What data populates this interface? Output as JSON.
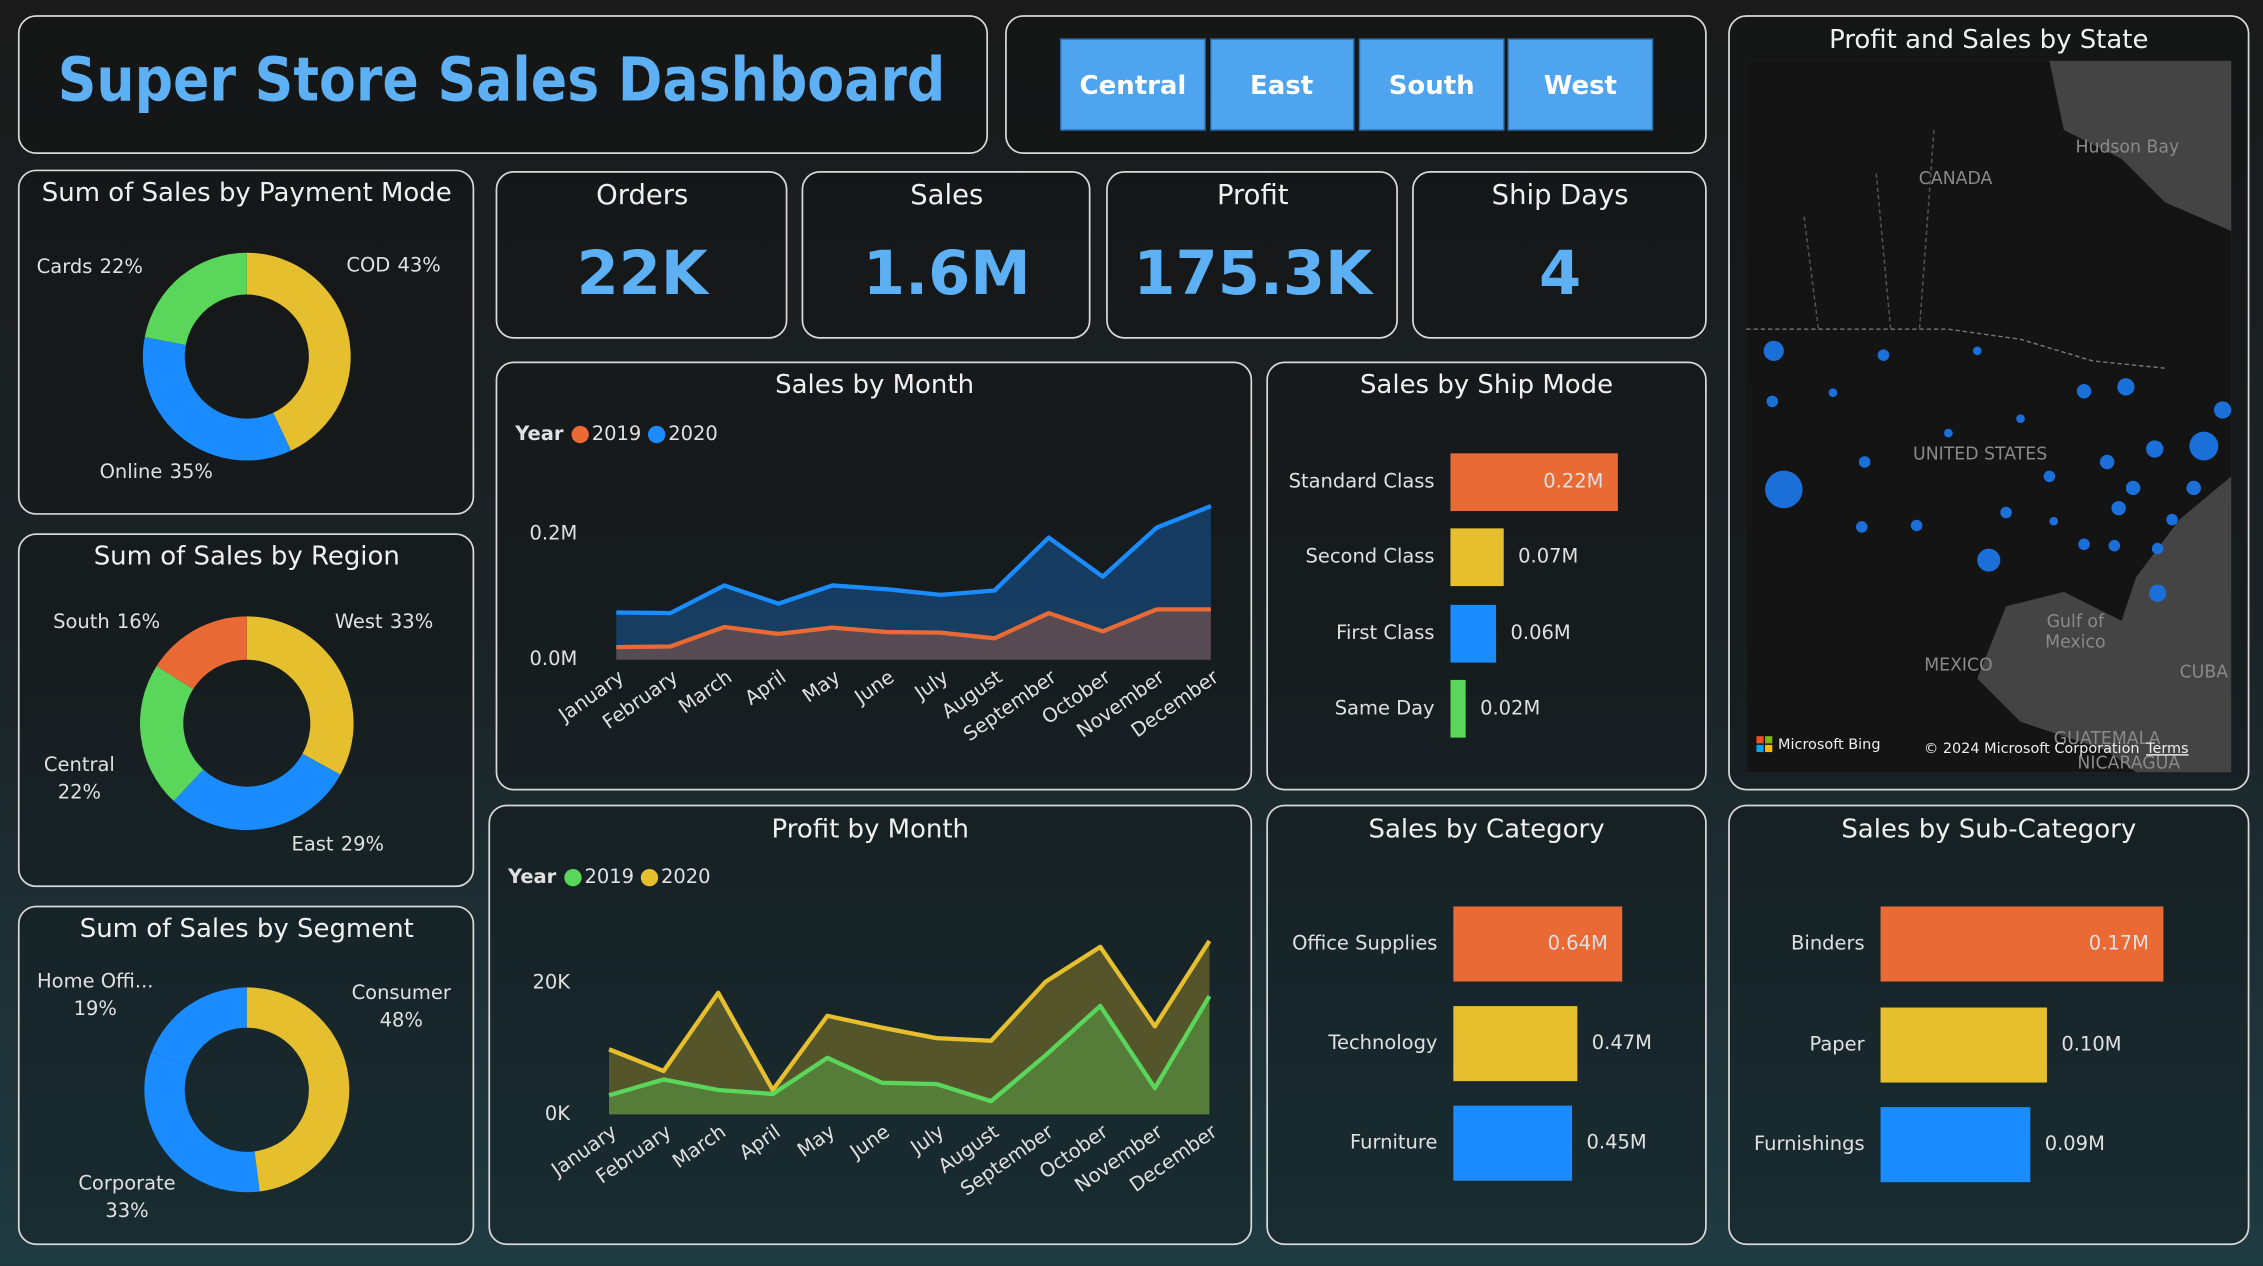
{
  "header": {
    "title": "Super Store Sales Dashboard"
  },
  "slicer": [
    "Central",
    "East",
    "South",
    "West"
  ],
  "kpis": [
    {
      "label": "Orders",
      "value": "22K"
    },
    {
      "label": "Sales",
      "value": "1.6M"
    },
    {
      "label": "Profit",
      "value": "175.3K"
    },
    {
      "label": "Ship Days",
      "value": "4"
    }
  ],
  "map": {
    "title": "Profit and Sales by State",
    "labels": [
      "CANADA",
      "Hudson Bay",
      "UNITED STATES",
      "Gulf of",
      "Mexico",
      "MEXICO",
      "CUBA",
      "GUATEMALA",
      "NICARAGUA"
    ],
    "attribution": {
      "brand": "Microsoft Bing",
      "copyright": "© 2024 Microsoft Corporation",
      "terms": "Terms"
    }
  },
  "chart_data": [
    {
      "type": "donut",
      "title": "Sum of Sales by Payment Mode",
      "categories": [
        "COD",
        "Online",
        "Cards"
      ],
      "values": [
        43,
        35,
        22
      ],
      "value_labels": [
        "43%",
        "35%",
        "22%"
      ],
      "colors": [
        "#e6bf2e",
        "#1a8cff",
        "#5ad65a"
      ]
    },
    {
      "type": "donut",
      "title": "Sum of Sales by Region",
      "categories": [
        "West",
        "East",
        "Central",
        "South"
      ],
      "values": [
        33,
        29,
        22,
        16
      ],
      "value_labels": [
        "33%",
        "29%",
        "22%",
        "16%"
      ],
      "colors": [
        "#e6bf2e",
        "#1a8cff",
        "#5ad65a",
        "#ea6a35"
      ]
    },
    {
      "type": "donut",
      "title": "Sum of Sales by Segment",
      "categories": [
        "Consumer",
        "Corporate",
        "Home Offi..."
      ],
      "values": [
        48,
        33,
        19
      ],
      "value_labels": [
        "48%",
        "33%",
        "19%"
      ],
      "colors": [
        "#e6bf2e",
        "#1a8cff",
        "#1a8cff"
      ]
    },
    {
      "type": "area",
      "title": "Sales by Month",
      "legend_title": "Year",
      "categories": [
        "January",
        "February",
        "March",
        "April",
        "May",
        "June",
        "July",
        "August",
        "September",
        "October",
        "November",
        "December"
      ],
      "series": [
        {
          "name": "2019",
          "color": "#ea6a35",
          "values": [
            20000,
            21000,
            52000,
            41000,
            51000,
            44000,
            43000,
            34000,
            74000,
            45000,
            80000,
            80000
          ]
        },
        {
          "name": "2020",
          "color": "#1a8cff",
          "values": [
            75000,
            74000,
            118000,
            89000,
            118000,
            112000,
            103000,
            110000,
            194000,
            132000,
            210000,
            244000
          ]
        }
      ],
      "ylim": [
        0,
        250000
      ],
      "yticks": [
        {
          "value": 0,
          "label": "0.0M"
        },
        {
          "value": 200000,
          "label": "0.2M"
        }
      ]
    },
    {
      "type": "hbar",
      "title": "Sales by Ship Mode",
      "categories": [
        "Standard Class",
        "Second Class",
        "First Class",
        "Same Day"
      ],
      "values": [
        220000,
        70000,
        60000,
        20000
      ],
      "value_labels": [
        "0.22M",
        "0.07M",
        "0.06M",
        "0.02M"
      ],
      "colors": [
        "#ea6a35",
        "#e6bf2e",
        "#1a8cff",
        "#5ad65a"
      ]
    },
    {
      "type": "area",
      "title": "Profit by Month",
      "legend_title": "Year",
      "categories": [
        "January",
        "February",
        "March",
        "April",
        "May",
        "June",
        "July",
        "August",
        "September",
        "October",
        "November",
        "December"
      ],
      "series": [
        {
          "name": "2019",
          "color": "#5ad65a",
          "values": [
            2900,
            5300,
            3700,
            3100,
            8600,
            4800,
            4600,
            2000,
            9000,
            16500,
            4000,
            18000
          ]
        },
        {
          "name": "2020",
          "color": "#e6bf2e",
          "values": [
            9900,
            6600,
            18500,
            3700,
            15000,
            13200,
            11600,
            11200,
            20200,
            25500,
            13400,
            26400
          ]
        }
      ],
      "ylim": [
        0,
        30000
      ],
      "yticks": [
        {
          "value": 0,
          "label": "0K"
        },
        {
          "value": 20000,
          "label": "20K"
        }
      ]
    },
    {
      "type": "hbar",
      "title": "Sales by Category",
      "categories": [
        "Office Supplies",
        "Technology",
        "Furniture"
      ],
      "values": [
        640000,
        470000,
        450000
      ],
      "value_labels": [
        "0.64M",
        "0.47M",
        "0.45M"
      ],
      "colors": [
        "#ea6a35",
        "#e6bf2e",
        "#1a8cff"
      ]
    },
    {
      "type": "hbar",
      "title": "Sales by Sub-Category",
      "categories": [
        "Binders",
        "Paper",
        "Furnishings"
      ],
      "values": [
        170000,
        100000,
        90000
      ],
      "value_labels": [
        "0.17M",
        "0.10M",
        "0.09M"
      ],
      "colors": [
        "#ea6a35",
        "#e6bf2e",
        "#1a8cff"
      ]
    }
  ]
}
